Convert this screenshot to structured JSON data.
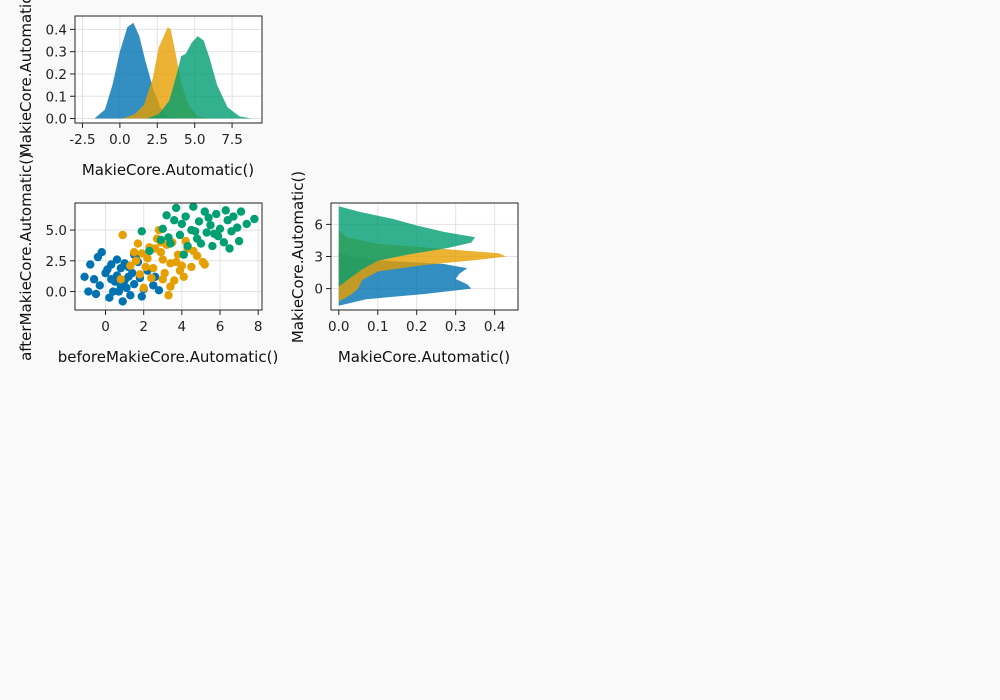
{
  "colors": {
    "background": "#f9f9f9",
    "series": [
      "#0072b2",
      "#e69f00",
      "#009e73"
    ]
  },
  "chart_data": [
    {
      "id": "top",
      "type": "area",
      "orientation": "vertical",
      "xlabel": "MakieCore.Automatic()",
      "ylabel": "MakieCore.Automatic()",
      "xlim": [
        -3.0,
        9.5
      ],
      "ylim": [
        -0.02,
        0.46
      ],
      "xticks": [
        -2.5,
        0.0,
        2.5,
        5.0,
        7.5
      ],
      "xtick_labels": [
        "-2.5",
        "0.0",
        "2.5",
        "5.0",
        "7.5"
      ],
      "yticks": [
        0.0,
        0.1,
        0.2,
        0.3,
        0.4
      ],
      "ytick_labels": [
        "0.0",
        "0.1",
        "0.2",
        "0.3",
        "0.4"
      ],
      "grid": true,
      "series": [
        {
          "x": [
            -1.7,
            -1.0,
            -0.5,
            0.0,
            0.5,
            0.9,
            1.3,
            1.7,
            2.2,
            2.7,
            3.2,
            3.8
          ],
          "y": [
            0.0,
            0.04,
            0.15,
            0.3,
            0.41,
            0.43,
            0.37,
            0.26,
            0.14,
            0.05,
            0.01,
            0.0
          ]
        },
        {
          "x": [
            0.2,
            1.0,
            1.6,
            2.2,
            2.6,
            3.0,
            3.2,
            3.4,
            3.7,
            4.1,
            4.6,
            5.2,
            6.0
          ],
          "y": [
            0.0,
            0.02,
            0.06,
            0.18,
            0.32,
            0.38,
            0.41,
            0.4,
            0.3,
            0.16,
            0.06,
            0.01,
            0.0
          ]
        },
        {
          "x": [
            1.8,
            2.6,
            3.3,
            3.8,
            4.1,
            4.4,
            4.8,
            5.2,
            5.6,
            6.0,
            6.5,
            7.2,
            8.0,
            8.8
          ],
          "y": [
            0.0,
            0.02,
            0.08,
            0.2,
            0.28,
            0.29,
            0.34,
            0.37,
            0.35,
            0.27,
            0.15,
            0.05,
            0.01,
            0.0
          ]
        }
      ]
    },
    {
      "id": "scatter",
      "type": "scatter",
      "xlabel": "beforeMakieCore.Automatic()",
      "ylabel": "afterMakieCore.Automatic()",
      "xlim": [
        -1.6,
        8.2
      ],
      "ylim": [
        -1.5,
        7.2
      ],
      "xticks": [
        0,
        2,
        4,
        6,
        8
      ],
      "xtick_labels": [
        "0",
        "2",
        "4",
        "6",
        "8"
      ],
      "yticks": [
        0.0,
        2.5,
        5.0
      ],
      "ytick_labels": [
        "0.0",
        "2.5",
        "5.0"
      ],
      "grid": true,
      "series": [
        {
          "points": [
            [
              -1.1,
              1.2
            ],
            [
              -0.9,
              0.0
            ],
            [
              -0.6,
              1.0
            ],
            [
              -0.4,
              2.8
            ],
            [
              -0.2,
              3.2
            ],
            [
              0.1,
              1.8
            ],
            [
              0.3,
              2.2
            ],
            [
              0.5,
              0.8
            ],
            [
              0.7,
              0.0
            ],
            [
              0.8,
              1.9
            ],
            [
              1.0,
              2.3
            ],
            [
              1.1,
              0.3
            ],
            [
              1.3,
              -0.3
            ],
            [
              1.4,
              1.5
            ],
            [
              1.5,
              0.6
            ],
            [
              1.6,
              2.9
            ],
            [
              1.8,
              1.1
            ],
            [
              2.0,
              0.2
            ],
            [
              2.2,
              1.7
            ],
            [
              2.5,
              0.5
            ],
            [
              0.2,
              -0.5
            ],
            [
              0.6,
              1.3
            ],
            [
              0.9,
              -0.8
            ],
            [
              1.2,
              2.0
            ],
            [
              -0.3,
              0.5
            ],
            [
              0.4,
              0.0
            ],
            [
              1.7,
              2.4
            ],
            [
              2.8,
              0.1
            ],
            [
              2.3,
              3.3
            ],
            [
              0.0,
              1.5
            ],
            [
              1.9,
              -0.4
            ],
            [
              0.6,
              2.6
            ],
            [
              -0.8,
              2.2
            ],
            [
              1.0,
              0.9
            ],
            [
              2.6,
              1.2
            ],
            [
              0.3,
              1.0
            ],
            [
              1.5,
              3.0
            ],
            [
              -0.5,
              -0.2
            ],
            [
              0.8,
              0.4
            ],
            [
              1.2,
              1.2
            ]
          ]
        },
        {
          "points": [
            [
              0.8,
              1.0
            ],
            [
              0.9,
              4.6
            ],
            [
              1.3,
              2.1
            ],
            [
              1.6,
              2.5
            ],
            [
              1.7,
              3.9
            ],
            [
              1.9,
              3.1
            ],
            [
              2.0,
              0.3
            ],
            [
              2.1,
              2.0
            ],
            [
              2.3,
              3.6
            ],
            [
              2.5,
              1.9
            ],
            [
              2.7,
              4.3
            ],
            [
              2.9,
              3.2
            ],
            [
              3.0,
              2.6
            ],
            [
              3.1,
              1.5
            ],
            [
              3.3,
              -0.3
            ],
            [
              3.4,
              2.3
            ],
            [
              3.5,
              4.0
            ],
            [
              3.6,
              0.9
            ],
            [
              3.8,
              3.0
            ],
            [
              4.0,
              2.1
            ],
            [
              4.1,
              1.2
            ],
            [
              4.3,
              3.5
            ],
            [
              4.5,
              2.0
            ],
            [
              4.8,
              2.9
            ],
            [
              5.1,
              2.4
            ],
            [
              5.2,
              2.2
            ],
            [
              2.4,
              1.1
            ],
            [
              2.8,
              5.0
            ],
            [
              3.2,
              3.8
            ],
            [
              3.7,
              2.4
            ],
            [
              1.5,
              3.2
            ],
            [
              2.2,
              2.7
            ],
            [
              4.2,
              4.1
            ],
            [
              3.0,
              1.0
            ],
            [
              3.9,
              1.7
            ],
            [
              2.6,
              3.5
            ],
            [
              1.8,
              1.4
            ],
            [
              4.6,
              3.3
            ],
            [
              3.4,
              0.4
            ],
            [
              2.9,
              4.0
            ]
          ]
        },
        {
          "points": [
            [
              1.9,
              4.9
            ],
            [
              2.3,
              3.3
            ],
            [
              2.9,
              4.2
            ],
            [
              3.0,
              5.1
            ],
            [
              3.2,
              6.2
            ],
            [
              3.4,
              3.9
            ],
            [
              3.6,
              5.8
            ],
            [
              3.7,
              6.8
            ],
            [
              3.9,
              4.6
            ],
            [
              4.0,
              5.5
            ],
            [
              4.2,
              6.1
            ],
            [
              4.3,
              3.7
            ],
            [
              4.5,
              5.0
            ],
            [
              4.6,
              6.9
            ],
            [
              4.8,
              4.3
            ],
            [
              4.9,
              5.7
            ],
            [
              5.0,
              3.9
            ],
            [
              5.2,
              6.5
            ],
            [
              5.3,
              4.8
            ],
            [
              5.5,
              5.4
            ],
            [
              5.6,
              3.7
            ],
            [
              5.8,
              6.3
            ],
            [
              5.9,
              4.5
            ],
            [
              6.0,
              5.1
            ],
            [
              6.2,
              4.0
            ],
            [
              6.3,
              6.6
            ],
            [
              6.4,
              5.8
            ],
            [
              6.5,
              3.5
            ],
            [
              6.6,
              4.9
            ],
            [
              6.7,
              6.1
            ],
            [
              6.9,
              5.2
            ],
            [
              7.0,
              4.1
            ],
            [
              7.1,
              6.5
            ],
            [
              7.4,
              5.5
            ],
            [
              7.8,
              5.9
            ],
            [
              4.1,
              3.0
            ],
            [
              5.4,
              6.0
            ],
            [
              4.7,
              4.9
            ],
            [
              3.3,
              4.4
            ],
            [
              5.7,
              4.7
            ]
          ]
        }
      ]
    },
    {
      "id": "right",
      "type": "area",
      "orientation": "horizontal",
      "xlabel": "MakieCore.Automatic()",
      "ylabel": "MakieCore.Automatic()",
      "xlim": [
        -0.02,
        0.46
      ],
      "ylim": [
        -2.0,
        8.0
      ],
      "xticks": [
        0.0,
        0.1,
        0.2,
        0.3,
        0.4
      ],
      "xtick_labels": [
        "0.0",
        "0.1",
        "0.2",
        "0.3",
        "0.4"
      ],
      "yticks": [
        0,
        3,
        6
      ],
      "ytick_labels": [
        "0",
        "3",
        "6"
      ],
      "grid": true,
      "series": [
        {
          "y": [
            -1.6,
            -1.0,
            -0.5,
            0.0,
            0.4,
            0.9,
            1.4,
            1.9,
            2.3,
            2.6,
            3.0,
            3.4
          ],
          "x": [
            0.0,
            0.07,
            0.22,
            0.34,
            0.33,
            0.3,
            0.31,
            0.33,
            0.27,
            0.12,
            0.03,
            0.0
          ]
        },
        {
          "y": [
            -1.2,
            -0.6,
            0.0,
            0.8,
            1.6,
            2.2,
            2.7,
            3.0,
            3.3,
            3.7,
            4.2,
            4.8,
            5.5
          ],
          "x": [
            0.0,
            0.03,
            0.05,
            0.06,
            0.1,
            0.22,
            0.36,
            0.43,
            0.41,
            0.27,
            0.1,
            0.02,
            0.0
          ]
        },
        {
          "y": [
            0.2,
            1.0,
            1.8,
            2.6,
            3.2,
            3.8,
            4.3,
            4.8,
            5.3,
            5.9,
            6.5,
            7.2,
            7.7
          ],
          "x": [
            0.0,
            0.03,
            0.06,
            0.1,
            0.18,
            0.28,
            0.34,
            0.35,
            0.27,
            0.2,
            0.14,
            0.05,
            0.0
          ]
        }
      ]
    }
  ]
}
